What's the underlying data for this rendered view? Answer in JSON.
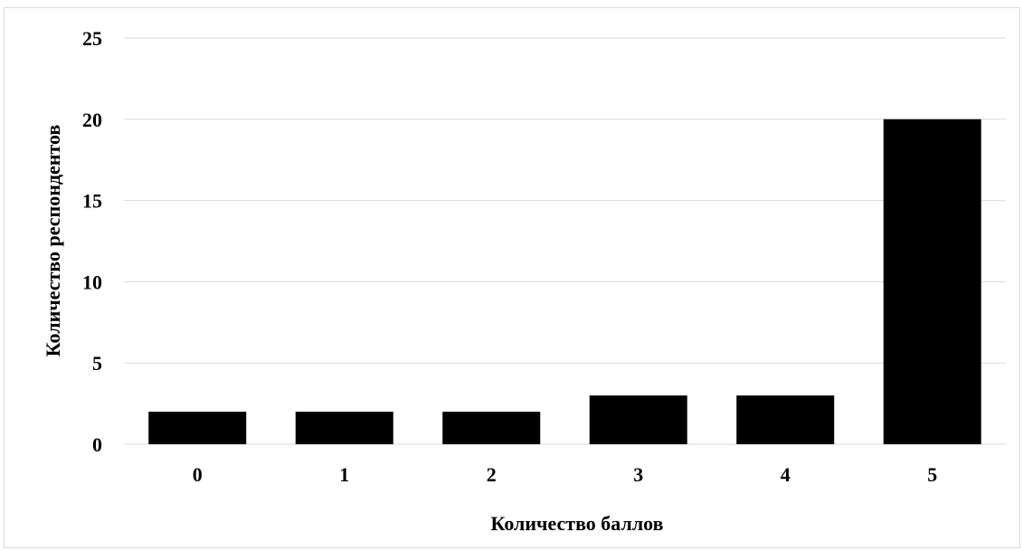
{
  "chart_data": {
    "type": "bar",
    "categories": [
      "0",
      "1",
      "2",
      "3",
      "4",
      "5"
    ],
    "values": [
      2,
      2,
      2,
      3,
      3,
      20
    ],
    "title": "",
    "xlabel": "Количество баллов",
    "ylabel": "Количество респондентов",
    "ylim": [
      0,
      25
    ],
    "yticks": [
      "0",
      "5",
      "10",
      "15",
      "20",
      "25"
    ],
    "grid": true,
    "legend": "none",
    "bar_color": "#000000",
    "grid_color": "#d9d9d9"
  }
}
